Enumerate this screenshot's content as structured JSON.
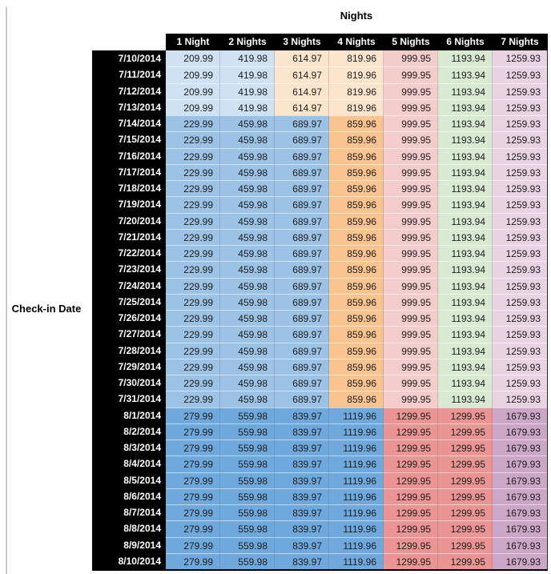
{
  "colors": {
    "light_blue": "#CFE2F3",
    "med_blue": "#9CC3E6",
    "dark_blue": "#6FA8DC",
    "light_orange": "#FCE5CD",
    "med_orange": "#F9C490",
    "light_red": "#F4CCCC",
    "med_red": "#EA9494",
    "light_green": "#D9EAD3",
    "light_magenta": "#E9D3E2",
    "med_magenta": "#CBA6C6",
    "header_bg": "#000000",
    "header_text": "#FFFFFF",
    "date_col_bg": "#000000",
    "date_text": "#FFFFFF",
    "value_text": "#1C1C1C"
  },
  "chart_data": {
    "type": "table",
    "title": "Nights",
    "row_axis_label": "Check-in Date",
    "columns": [
      "1 Night",
      "2 Nights",
      "3 Nights",
      "4 Nights",
      "5 Nights",
      "6 Nights",
      "7 Nights"
    ],
    "bands": [
      {
        "dates": [
          "7/10/2014",
          "7/11/2014",
          "7/12/2014",
          "7/13/2014"
        ],
        "values": [
          209.99,
          419.98,
          614.97,
          819.96,
          999.95,
          1193.94,
          1259.93
        ],
        "cell_colors": [
          "light_blue",
          "light_blue",
          "light_orange",
          "light_orange",
          "light_red",
          "light_green",
          "light_magenta"
        ]
      },
      {
        "dates": [
          "7/14/2014",
          "7/15/2014",
          "7/16/2014",
          "7/17/2014",
          "7/18/2014",
          "7/19/2014",
          "7/20/2014",
          "7/21/2014",
          "7/22/2014",
          "7/23/2014",
          "7/24/2014",
          "7/25/2014",
          "7/26/2014",
          "7/27/2014",
          "7/28/2014",
          "7/29/2014",
          "7/30/2014",
          "7/31/2014"
        ],
        "values": [
          229.99,
          459.98,
          689.97,
          859.96,
          999.95,
          1193.94,
          1259.93
        ],
        "cell_colors": [
          "med_blue",
          "med_blue",
          "med_blue",
          "med_orange",
          "light_red",
          "light_green",
          "light_magenta"
        ]
      },
      {
        "dates": [
          "8/1/2014",
          "8/2/2014",
          "8/3/2014",
          "8/4/2014",
          "8/5/2014",
          "8/6/2014",
          "8/7/2014",
          "8/8/2014",
          "8/9/2014",
          "8/10/2014"
        ],
        "values": [
          279.99,
          559.98,
          839.97,
          1119.96,
          1299.95,
          1299.95,
          1679.93
        ],
        "cell_colors": [
          "dark_blue",
          "dark_blue",
          "dark_blue",
          "dark_blue",
          "med_red",
          "med_red",
          "med_magenta"
        ]
      }
    ]
  }
}
